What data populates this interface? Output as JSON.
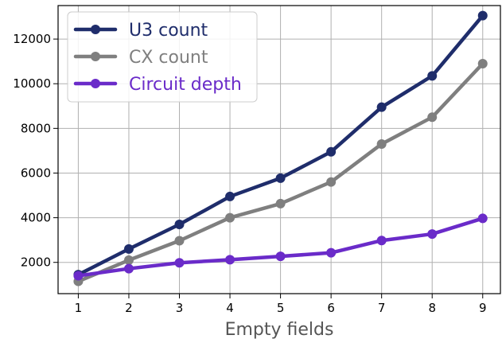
{
  "chart_data": {
    "type": "line",
    "title": "",
    "xlabel": "Empty fields",
    "ylabel": "",
    "x": [
      1,
      2,
      3,
      4,
      5,
      6,
      7,
      8,
      9
    ],
    "xticks": [
      "1",
      "2",
      "3",
      "4",
      "5",
      "6",
      "7",
      "8",
      "9"
    ],
    "yticks": [
      2000,
      4000,
      6000,
      8000,
      10000,
      12000
    ],
    "ylim": [
      600,
      13500
    ],
    "xlim": [
      0.6,
      9.35
    ],
    "grid": true,
    "legend_position": "top-left",
    "series": [
      {
        "name": "U3 count",
        "color": "#1f2d6b",
        "values": [
          1450,
          2600,
          3700,
          4950,
          5770,
          6950,
          8950,
          10350,
          13050
        ]
      },
      {
        "name": "CX count",
        "color": "#7f7f7f",
        "values": [
          1150,
          2100,
          2970,
          4000,
          4630,
          5600,
          7300,
          8500,
          10900
        ]
      },
      {
        "name": "Circuit depth",
        "color": "#6a2bc9",
        "values": [
          1400,
          1720,
          1980,
          2120,
          2270,
          2430,
          2980,
          3270,
          3970
        ]
      }
    ]
  }
}
